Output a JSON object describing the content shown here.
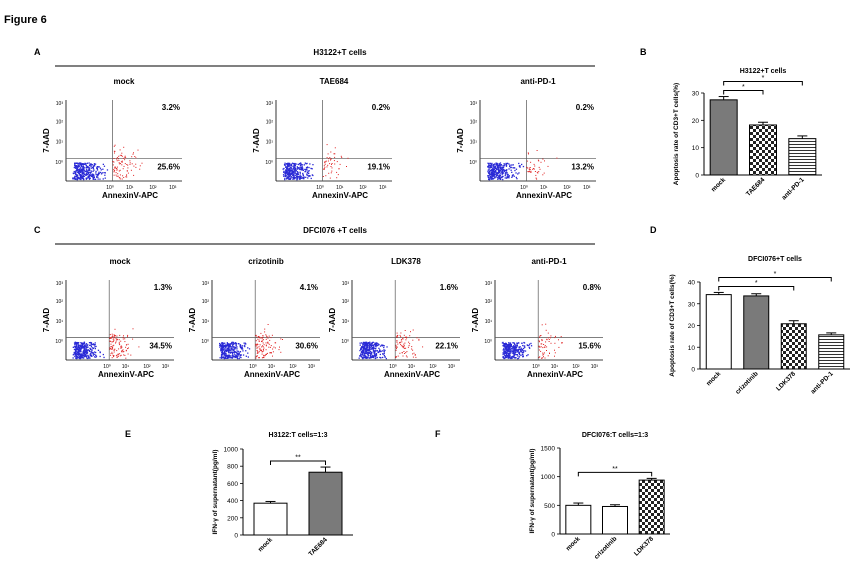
{
  "figure_title": "Figure 6",
  "panel_letters": {
    "A": "A",
    "B": "B",
    "C": "C",
    "D": "D",
    "E": "E",
    "F": "F"
  },
  "colors": {
    "neg": "#2a2ad6",
    "pos": "#e02020",
    "gate": "#555555",
    "bar_mock": "#ffffff",
    "bar_dark": "#7a7a7a"
  },
  "panel_a": {
    "group_title": "H3122+T cells",
    "x_axis_label": "AnnexinV-APC",
    "y_axis_label": "7-AAD",
    "ticks_x": [
      "10⁰",
      "10¹",
      "10²",
      "10³"
    ],
    "ticks_y": [
      "10³",
      "10²",
      "10¹",
      "10⁰"
    ],
    "plots": [
      {
        "title": "mock",
        "ur": "3.2%",
        "lr": "25.6%"
      },
      {
        "title": "TAE684",
        "ur": "0.2%",
        "lr": "19.1%"
      },
      {
        "title": "anti-PD-1",
        "ur": "0.2%",
        "lr": "13.2%"
      }
    ]
  },
  "panel_c": {
    "group_title": "DFCI076 +T cells",
    "x_axis_label": "AnnexinV-APC",
    "y_axis_label": "7-AAD",
    "ticks_x": [
      "10⁰",
      "10¹",
      "10²",
      "10³"
    ],
    "ticks_y": [
      "10³",
      "10²",
      "10¹",
      "10⁰"
    ],
    "plots": [
      {
        "title": "mock",
        "ur": "1.3%",
        "lr": "34.5%"
      },
      {
        "title": "crizotinib",
        "ur": "4.1%",
        "lr": "30.6%"
      },
      {
        "title": "LDK378",
        "ur": "1.6%",
        "lr": "22.1%"
      },
      {
        "title": "anti-PD-1",
        "ur": "0.8%",
        "lr": "15.6%"
      }
    ]
  },
  "chart_data": [
    {
      "id": "B",
      "type": "bar",
      "title": "H3122+T cells",
      "ylabel": "Apoptosis rate of CD3+T cells(%)",
      "categories": [
        "mock",
        "TAE684",
        "anti-PD-1"
      ],
      "values": [
        27.5,
        18.3,
        13.3
      ],
      "errors": [
        1.2,
        1.0,
        1.0
      ],
      "ylim": [
        0,
        30
      ],
      "yticks": [
        "0",
        "10",
        "20",
        "30"
      ],
      "fills": [
        "dark",
        "check",
        "hlines"
      ],
      "significance": [
        {
          "a": 0,
          "b": 1,
          "label": "*"
        },
        {
          "a": 0,
          "b": 2,
          "label": "*"
        }
      ]
    },
    {
      "id": "D",
      "type": "bar",
      "title": "DFCI076+T cells",
      "ylabel": "Apoptosis rate of CD3+T cells(%)",
      "categories": [
        "mock",
        "crizotinib",
        "LDK378",
        "anti-PD-1"
      ],
      "values": [
        34.2,
        33.6,
        20.8,
        15.7
      ],
      "errors": [
        1.0,
        1.0,
        1.4,
        0.9
      ],
      "ylim": [
        0,
        40
      ],
      "yticks": [
        "0",
        "10",
        "20",
        "30",
        "40"
      ],
      "fills": [
        "white",
        "dark",
        "check",
        "hlines"
      ],
      "significance": [
        {
          "a": 0,
          "b": 2,
          "label": "*"
        },
        {
          "a": 0,
          "b": 3,
          "label": "*"
        }
      ]
    },
    {
      "id": "E",
      "type": "bar",
      "title": "H3122:T cells=1:3",
      "ylabel": "IFN-γ of supernatant(pg/ml)",
      "categories": [
        "mock",
        "TAE684"
      ],
      "values": [
        370,
        730
      ],
      "errors": [
        20,
        60
      ],
      "ylim": [
        0,
        1000
      ],
      "yticks": [
        "0",
        "200",
        "400",
        "600",
        "800",
        "1000"
      ],
      "fills": [
        "white",
        "dark"
      ],
      "significance": [
        {
          "a": 0,
          "b": 1,
          "label": "**"
        }
      ]
    },
    {
      "id": "F",
      "type": "bar",
      "title": "DFCI076:T cells=1:3",
      "ylabel": "IFN-γ of supernatant(pg/ml)",
      "categories": [
        "mock",
        "crizotinib",
        "LDK378"
      ],
      "values": [
        500,
        480,
        940
      ],
      "errors": [
        40,
        30,
        30
      ],
      "ylim": [
        0,
        1500
      ],
      "yticks": [
        "0",
        "500",
        "1000",
        "1500"
      ],
      "fills": [
        "white",
        "white",
        "check"
      ],
      "significance": [
        {
          "a": 0,
          "b": 2,
          "label": "**"
        }
      ]
    }
  ]
}
